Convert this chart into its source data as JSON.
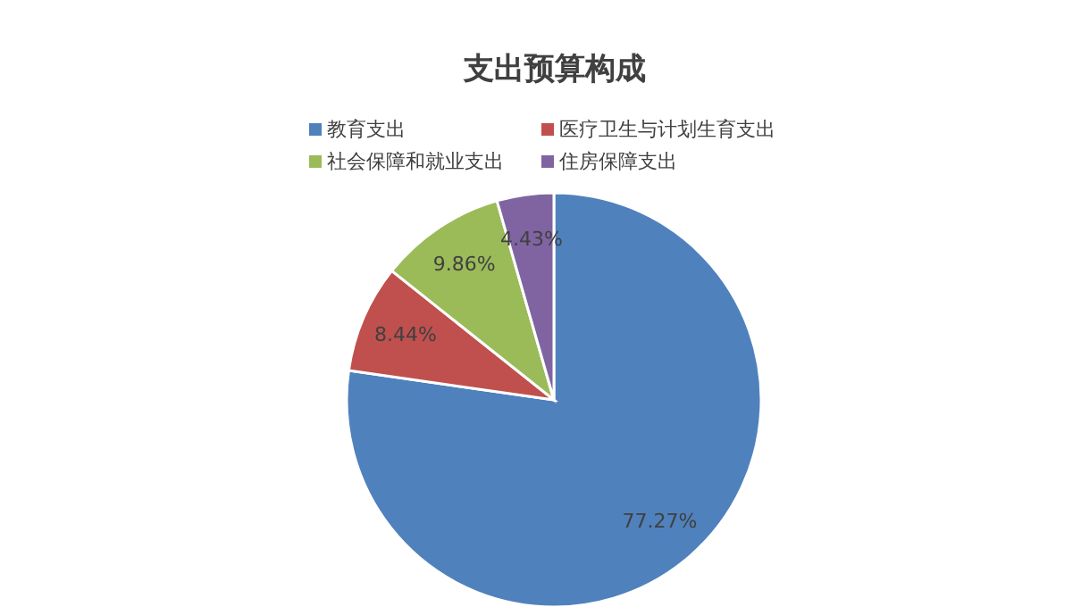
{
  "chart_data": {
    "type": "pie",
    "title": "支出预算构成",
    "categories": [
      "教育支出",
      "医疗卫生与计划生育支出",
      "社会保障和就业支出",
      "住房保障支出"
    ],
    "values": [
      77.27,
      8.44,
      9.86,
      4.43
    ],
    "value_labels": [
      "77.27%",
      "8.44%",
      "9.86%",
      "4.43%"
    ],
    "colors": [
      "#4f81bd",
      "#c0504d",
      "#9bbb59",
      "#8064a2"
    ],
    "legend": "top"
  }
}
